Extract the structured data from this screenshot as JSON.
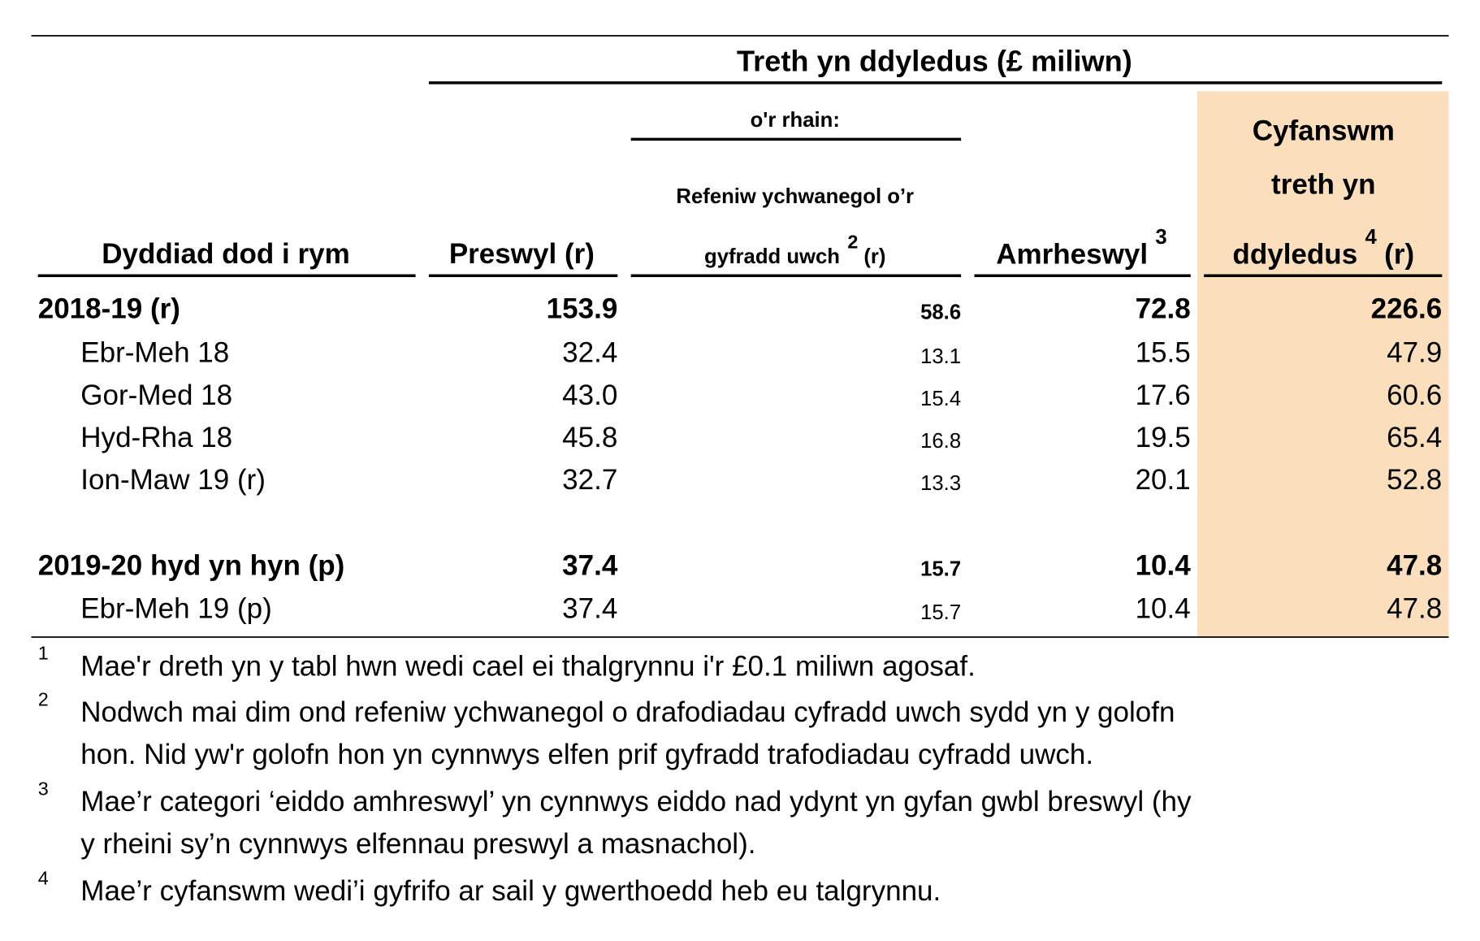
{
  "header": {
    "title": "Treth yn ddyledus (£ miliwn)",
    "subheading": "o'r rhain:",
    "columns": [
      {
        "text": "Dyddiad dod i rym"
      },
      {
        "text": "Preswyl (r)"
      },
      {
        "lines": [
          "Refeniw ychwanegol o’r",
          "gyfradd uwch"
        ],
        "sup": "2",
        "suffix": "(r)"
      },
      {
        "text": "Amrheswyl",
        "sup": "3"
      },
      {
        "lines": [
          "Cyfanswm",
          "treth yn",
          "ddyledus"
        ],
        "sup": "4",
        "suffix": "(r)"
      }
    ]
  },
  "table": {
    "rows": [
      [
        "2018-19 (r)",
        "153.9",
        "58.6",
        "72.8",
        "226.6"
      ],
      [
        "Ebr-Meh 18",
        "32.4",
        "13.1",
        "15.5",
        "47.9"
      ],
      [
        "Gor-Med 18",
        "43.0",
        "15.4",
        "17.6",
        "60.6"
      ],
      [
        "Hyd-Rha 18",
        "45.8",
        "16.8",
        "19.5",
        "65.4"
      ],
      [
        "Ion-Maw 19 (r)",
        "32.7",
        "13.3",
        "20.1",
        "52.8"
      ],
      [
        "2019-20 hyd yn hyn (p)",
        "37.4",
        "15.7",
        "10.4",
        "47.8"
      ],
      [
        "Ebr-Meh 19 (p)",
        "37.4",
        "15.7",
        "10.4",
        "47.8"
      ]
    ]
  },
  "footnotes": [
    {
      "marker": "1",
      "lines": [
        "Mae'r dreth yn y tabl hwn wedi cael ei thalgrynnu i'r £0.1 miliwn agosaf."
      ]
    },
    {
      "marker": "2",
      "lines": [
        "Nodwch mai dim ond refeniw ychwanegol o drafodiadau cyfradd uwch sydd yn y golofn",
        "hon. Nid yw'r golofn hon yn cynnwys elfen prif gyfradd trafodiadau cyfradd uwch."
      ]
    },
    {
      "marker": "3",
      "lines": [
        "Mae’r categori ‘eiddo amhreswyl’ yn cynnwys eiddo nad ydynt yn gyfan gwbl breswyl (hy",
        "y rheini sy’n cynnwys elfennau preswyl a masnachol)."
      ]
    },
    {
      "marker": "4",
      "lines": [
        "Mae’r cyfanswm wedi’i gyfrifo ar sail y gwerthoedd heb eu talgrynnu."
      ]
    }
  ]
}
